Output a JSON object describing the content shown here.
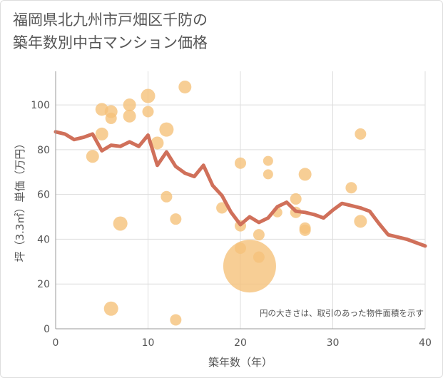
{
  "title": {
    "line1": "福岡県北九州市戸畑区千防の",
    "line2": "築年数別中古マンション価格"
  },
  "chart_data": {
    "type": "scatter",
    "xlabel": "築年数（年）",
    "ylabel": "坪（3.3㎡）単価（万円）",
    "xlim": [
      0,
      40
    ],
    "ylim": [
      0,
      115
    ],
    "xticks": [
      0,
      10,
      20,
      30,
      40
    ],
    "yticks": [
      0,
      20,
      40,
      60,
      80,
      100
    ],
    "grid": true,
    "note": "円の大きさは、取引のあった物件面積を示す",
    "colors": {
      "points": "#f5c27a",
      "line": "#d0705a",
      "grid": "#dddddd"
    },
    "points": [
      {
        "x": 5,
        "y": 98,
        "r": 9
      },
      {
        "x": 6,
        "y": 97,
        "r": 9
      },
      {
        "x": 6,
        "y": 94,
        "r": 8
      },
      {
        "x": 5,
        "y": 87,
        "r": 9
      },
      {
        "x": 4,
        "y": 77,
        "r": 9
      },
      {
        "x": 8,
        "y": 100,
        "r": 9
      },
      {
        "x": 8,
        "y": 95,
        "r": 9
      },
      {
        "x": 10,
        "y": 104,
        "r": 10
      },
      {
        "x": 10,
        "y": 97,
        "r": 8
      },
      {
        "x": 11,
        "y": 83,
        "r": 9
      },
      {
        "x": 12,
        "y": 89,
        "r": 10
      },
      {
        "x": 14,
        "y": 108,
        "r": 9
      },
      {
        "x": 7,
        "y": 47,
        "r": 10
      },
      {
        "x": 12,
        "y": 59,
        "r": 8
      },
      {
        "x": 13,
        "y": 49,
        "r": 8
      },
      {
        "x": 6,
        "y": 9,
        "r": 10
      },
      {
        "x": 13,
        "y": 4,
        "r": 8
      },
      {
        "x": 18,
        "y": 54,
        "r": 8
      },
      {
        "x": 20,
        "y": 74,
        "r": 8
      },
      {
        "x": 20,
        "y": 46,
        "r": 8
      },
      {
        "x": 20,
        "y": 36,
        "r": 8
      },
      {
        "x": 21,
        "y": 28,
        "r": 37
      },
      {
        "x": 22,
        "y": 42,
        "r": 8
      },
      {
        "x": 22,
        "y": 32,
        "r": 8
      },
      {
        "x": 23,
        "y": 75,
        "r": 7
      },
      {
        "x": 23,
        "y": 69,
        "r": 7
      },
      {
        "x": 24,
        "y": 52,
        "r": 7
      },
      {
        "x": 26,
        "y": 58,
        "r": 8
      },
      {
        "x": 26,
        "y": 52,
        "r": 8
      },
      {
        "x": 27,
        "y": 69,
        "r": 9
      },
      {
        "x": 27,
        "y": 45,
        "r": 8
      },
      {
        "x": 27,
        "y": 44,
        "r": 8
      },
      {
        "x": 32,
        "y": 63,
        "r": 8
      },
      {
        "x": 33,
        "y": 87,
        "r": 8
      },
      {
        "x": 33,
        "y": 48,
        "r": 9
      }
    ],
    "trend": {
      "x": [
        0,
        1,
        2,
        3,
        4,
        5,
        6,
        7,
        8,
        9,
        10,
        11,
        12,
        13,
        14,
        15,
        16,
        17,
        18,
        19,
        20,
        21,
        22,
        23,
        24,
        25,
        26,
        27,
        28,
        29,
        30,
        31,
        32,
        33,
        34,
        35,
        36,
        37,
        38,
        39,
        40
      ],
      "y": [
        88,
        87,
        84.5,
        85.5,
        87,
        79.5,
        82,
        81.5,
        83.5,
        81.5,
        86.5,
        73,
        79,
        72.5,
        69.5,
        68,
        73,
        64,
        59.5,
        52,
        46.5,
        50,
        47.5,
        49.5,
        54.5,
        56.5,
        52.5,
        52,
        51,
        49.5,
        53,
        56,
        55,
        54,
        52.5,
        47,
        42,
        41,
        40,
        38.5,
        37
      ]
    }
  }
}
